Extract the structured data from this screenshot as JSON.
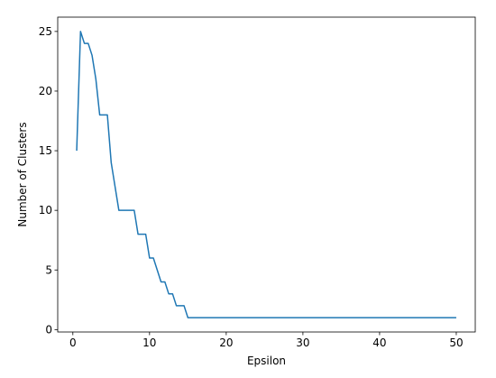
{
  "chart_data": {
    "type": "line",
    "xlabel": "Epsilon",
    "ylabel": "Number of Clusters",
    "x": [
      0.5,
      1,
      1.5,
      2,
      2.5,
      3,
      3.5,
      4,
      4.5,
      5,
      5.5,
      6,
      6.5,
      7,
      7.5,
      8,
      8.5,
      9,
      9.5,
      10,
      10.5,
      11,
      11.5,
      12,
      12.5,
      13,
      13.5,
      14,
      14.5,
      15,
      15.5,
      16,
      16.5,
      17,
      17.5,
      18,
      18.5,
      19,
      19.5,
      20,
      20.5,
      21,
      21.5,
      22,
      22.5,
      23,
      23.5,
      24,
      24.5,
      25,
      25.5,
      26,
      26.5,
      27,
      27.5,
      28,
      28.5,
      29,
      29.5,
      30,
      30.5,
      31,
      31.5,
      32,
      32.5,
      33,
      33.5,
      34,
      34.5,
      35,
      35.5,
      36,
      36.5,
      37,
      37.5,
      38,
      38.5,
      39,
      39.5,
      40,
      40.5,
      41,
      41.5,
      42,
      42.5,
      43,
      43.5,
      44,
      44.5,
      45,
      45.5,
      46,
      46.5,
      47,
      47.5,
      48,
      48.5,
      49,
      49.5,
      50
    ],
    "values": [
      15,
      25,
      24,
      24,
      23,
      21,
      18,
      18,
      18,
      14,
      12,
      10,
      10,
      10,
      10,
      10,
      8,
      8,
      8,
      6,
      6,
      5,
      4,
      4,
      3,
      3,
      2,
      2,
      2,
      1,
      1,
      1,
      1,
      1,
      1,
      1,
      1,
      1,
      1,
      1,
      1,
      1,
      1,
      1,
      1,
      1,
      1,
      1,
      1,
      1,
      1,
      1,
      1,
      1,
      1,
      1,
      1,
      1,
      1,
      1,
      1,
      1,
      1,
      1,
      1,
      1,
      1,
      1,
      1,
      1,
      1,
      1,
      1,
      1,
      1,
      1,
      1,
      1,
      1,
      1,
      1,
      1,
      1,
      1,
      1,
      1,
      1,
      1,
      1,
      1,
      1,
      1,
      1,
      1,
      1,
      1,
      1,
      1,
      1,
      1
    ],
    "color": "#1f77b4",
    "xlim": [
      -1.975,
      52.475
    ],
    "xticks": [
      0,
      10,
      20,
      30,
      40,
      50
    ],
    "ylim": [
      -0.2,
      26.2
    ],
    "yticks": [
      0,
      5,
      10,
      15,
      20,
      25
    ],
    "grid": false
  }
}
